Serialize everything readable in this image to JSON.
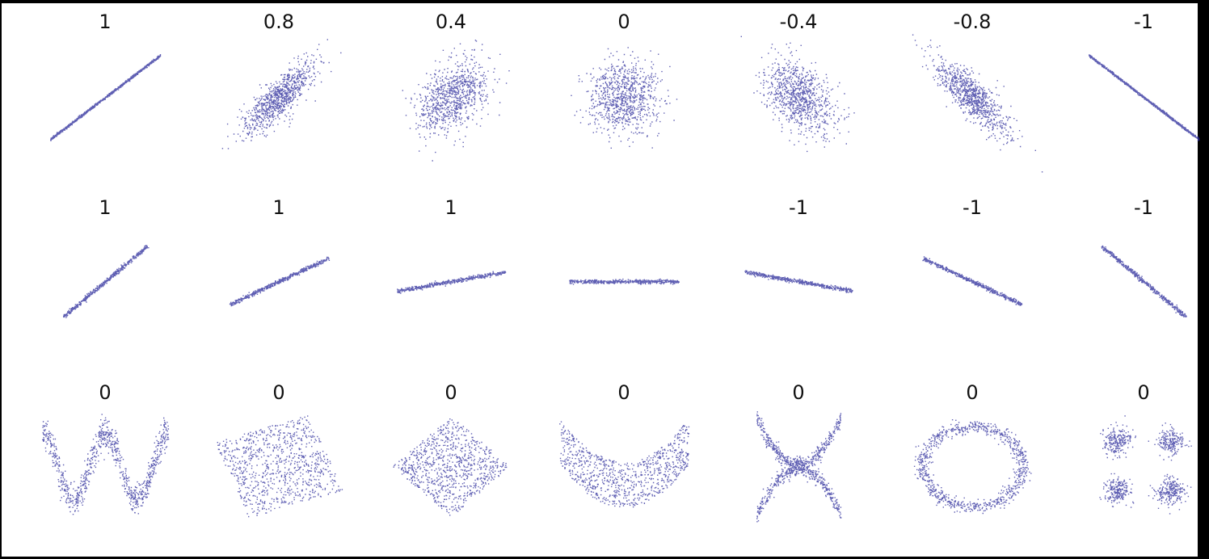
{
  "rows": [
    [
      "1",
      "0.8",
      "0.4",
      "0",
      "-0.4",
      "-0.8",
      "-1"
    ],
    [
      "1",
      "1",
      "1",
      null,
      "-1",
      "-1",
      "-1"
    ],
    [
      "0",
      "0",
      "0",
      "0",
      "0",
      "0",
      "0"
    ]
  ]
}
